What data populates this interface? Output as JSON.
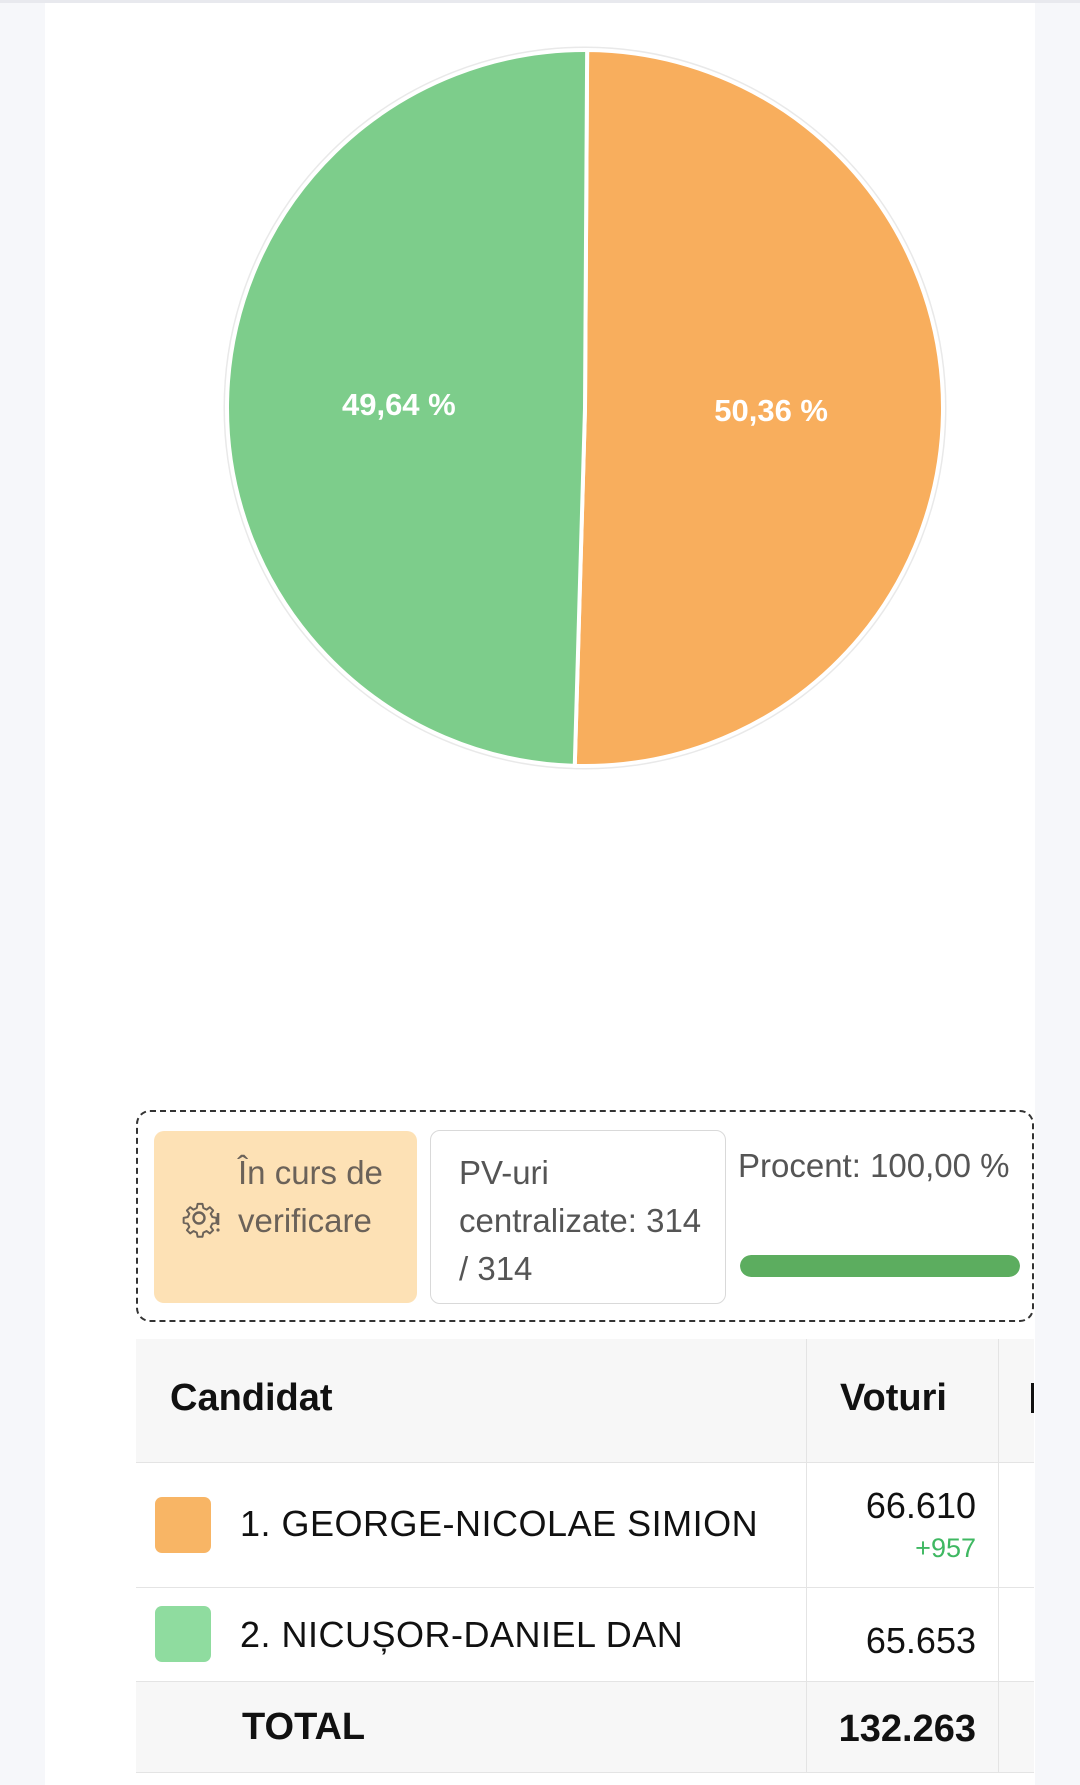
{
  "chart_data": {
    "type": "pie",
    "series": [
      {
        "name": "1. GEORGE-NICOLAE SIMION",
        "value": 50.36,
        "label": "50,36 %",
        "color": "#f8ae5d"
      },
      {
        "name": "2. NICUȘOR-DANIEL DAN",
        "value": 49.64,
        "label": "49,64 %",
        "color": "#7dcd8b"
      }
    ]
  },
  "status": {
    "verification_label": "În curs de verificare",
    "verification_icon": "gear-alert-icon",
    "pv_label": "PV-uri centralizate: 314 / 314",
    "percent_label": "Procent: 100,00 %",
    "progress_percent": 100
  },
  "table": {
    "headers": {
      "candidate": "Candidat",
      "votes": "Voturi"
    },
    "rows": [
      {
        "name": "1. GEORGE-NICOLAE SIMION",
        "votes": "66.610",
        "delta": "+957",
        "color": "#f8b565"
      },
      {
        "name": "2. NICUȘOR-DANIEL DAN",
        "votes": "65.653",
        "delta": "",
        "color": "#8fdc9f"
      }
    ],
    "total": {
      "label": "TOTAL",
      "votes": "132.263"
    }
  }
}
